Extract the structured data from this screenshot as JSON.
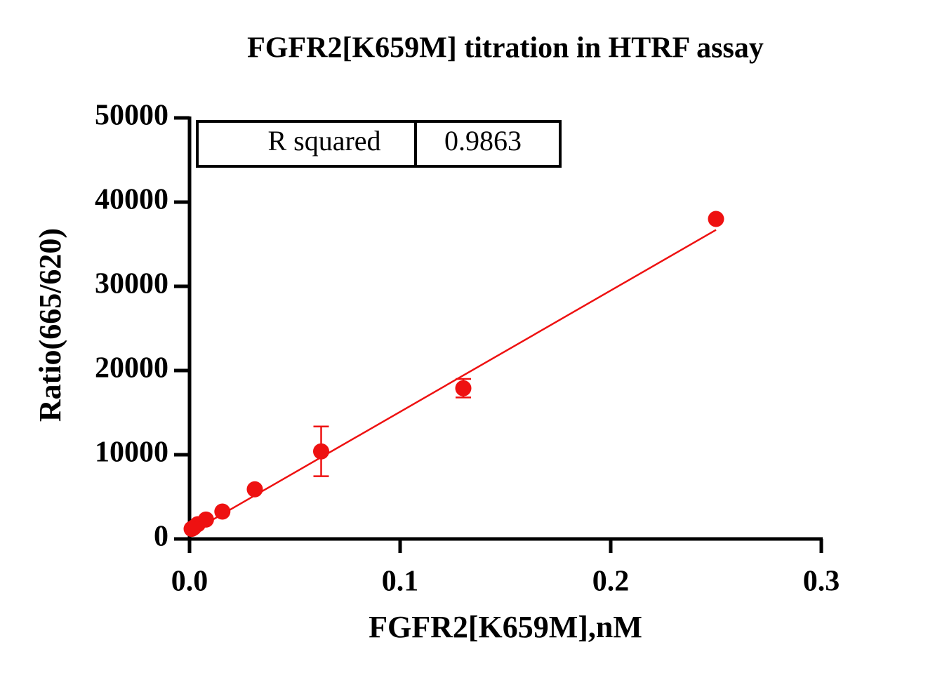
{
  "chart_data": {
    "type": "scatter",
    "title": "FGFR2[K659M] titration in HTRF assay",
    "x_label": "FGFR2[K659M],nM",
    "y_label": "Ratio(665/620)",
    "x": [
      0.25,
      0.13,
      0.0625,
      0.031,
      0.0156,
      0.0078,
      0.0039,
      0.002,
      0.001
    ],
    "values": [
      38000,
      17900,
      10400,
      5900,
      3250,
      2300,
      1750,
      1350,
      1200
    ],
    "errors": [
      null,
      1100,
      2950,
      null,
      null,
      null,
      null,
      null,
      null
    ],
    "color": "#ee1111",
    "fit_line": {
      "x": [
        0,
        0.25
      ],
      "values": [
        700,
        36700
      ],
      "color": "#ee1111"
    },
    "annotation_table": {
      "label": "R squared",
      "value": "0.9863"
    },
    "xlim": [
      0,
      0.3
    ],
    "xticks": [
      {
        "value": 0,
        "label": "0.0"
      },
      0.1,
      0.2,
      0.3
    ],
    "ylim": [
      0,
      50000
    ],
    "yticks": [
      0,
      10000,
      20000,
      30000,
      40000,
      50000
    ]
  }
}
